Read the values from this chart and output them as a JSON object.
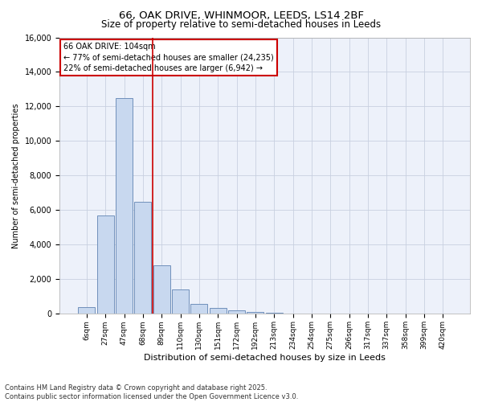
{
  "title_line1": "66, OAK DRIVE, WHINMOOR, LEEDS, LS14 2BF",
  "title_line2": "Size of property relative to semi-detached houses in Leeds",
  "xlabel": "Distribution of semi-detached houses by size in Leeds",
  "ylabel": "Number of semi-detached properties",
  "categories": [
    "6sqm",
    "27sqm",
    "47sqm",
    "68sqm",
    "89sqm",
    "110sqm",
    "130sqm",
    "151sqm",
    "172sqm",
    "192sqm",
    "213sqm",
    "234sqm",
    "254sqm",
    "275sqm",
    "296sqm",
    "317sqm",
    "337sqm",
    "358sqm",
    "399sqm",
    "420sqm"
  ],
  "values": [
    400,
    5700,
    12500,
    6500,
    2800,
    1400,
    600,
    350,
    200,
    100,
    50,
    30,
    15,
    10,
    5,
    5,
    3,
    2,
    2,
    1
  ],
  "bar_color": "#c8d8ef",
  "bar_edge_color": "#7090bb",
  "grid_color": "#c8d0e0",
  "bg_color": "#edf1fa",
  "vline_color": "#cc0000",
  "vline_pos": 3.5,
  "annotation_text": "66 OAK DRIVE: 104sqm\n← 77% of semi-detached houses are smaller (24,235)\n22% of semi-detached houses are larger (6,942) →",
  "annotation_box_edge": "#cc0000",
  "footnote": "Contains HM Land Registry data © Crown copyright and database right 2025.\nContains public sector information licensed under the Open Government Licence v3.0.",
  "ylim": [
    0,
    16000
  ],
  "yticks": [
    0,
    2000,
    4000,
    6000,
    8000,
    10000,
    12000,
    14000,
    16000
  ]
}
